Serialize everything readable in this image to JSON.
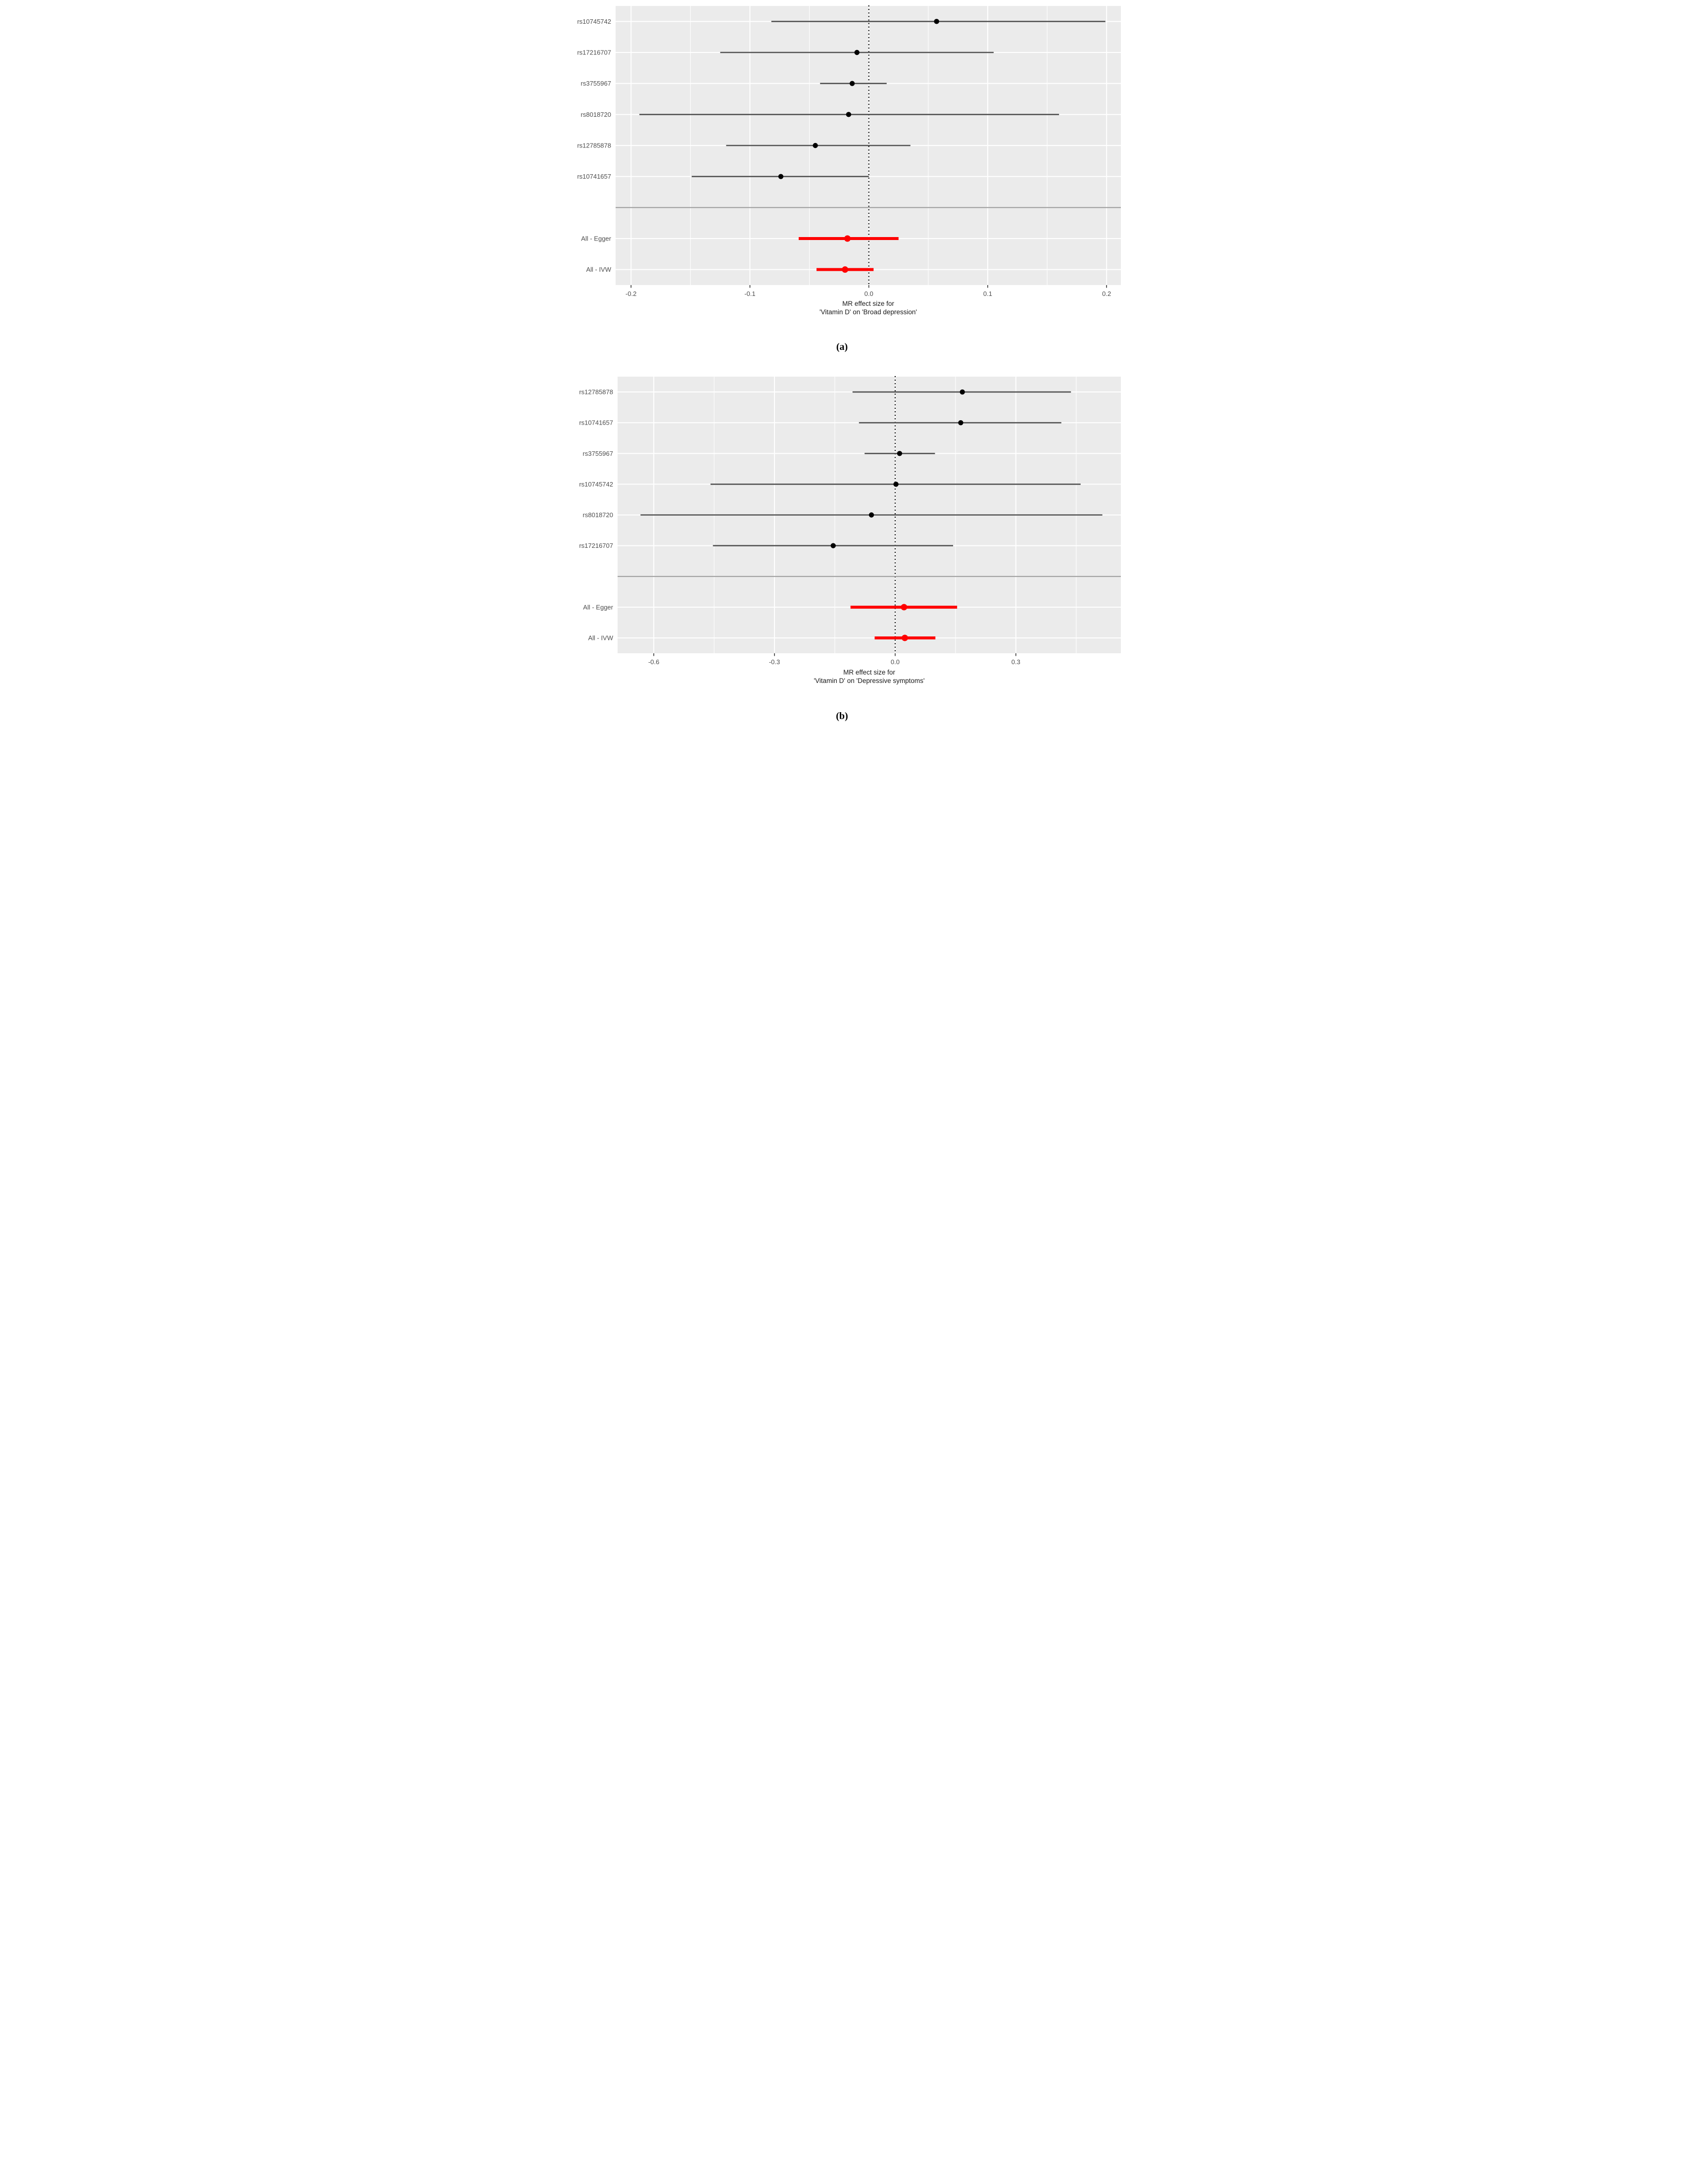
{
  "figure": {
    "description": "Two-panel forest plot figure of Mendelian randomization single-SNP and summary effects"
  },
  "colors": {
    "page_background": "#ffffff",
    "panel_background": "#ebebeb",
    "grid_line": "#ffffff",
    "snp_line": "#545454",
    "snp_point": "#000000",
    "summary_color": "#ff0000",
    "separator_line": "#9a9a9a",
    "zero_line": "#000000",
    "axis_text": "#4d4d4d",
    "axis_title": "#1a1a1a",
    "tick_mark": "#333333"
  },
  "chart_data": [
    {
      "id": "a",
      "type": "scatter",
      "variant": "forest-plot",
      "panel_label": "(a)",
      "xlabel": "MR effect size for 'Vitamin D' on 'Broad depression'",
      "xlabel_lines": [
        "MR effect size for",
        "'Vitamin D' on 'Broad depression'"
      ],
      "ylabel": "",
      "grid": true,
      "legend": false,
      "xlim": [
        -0.213,
        0.212
      ],
      "xticks": [
        -0.2,
        -0.1,
        0.0,
        0.1,
        0.2
      ],
      "xtick_labels": [
        "-0.2",
        "-0.1",
        "0.0",
        "0.1",
        "0.2"
      ],
      "xminor": [
        -0.15,
        -0.05,
        0.05,
        0.15
      ],
      "zero_line": 0.0,
      "rows": [
        {
          "label": "rs10745742",
          "group": "snp",
          "estimate": 0.057,
          "ci_low": -0.082,
          "ci_high": 0.199
        },
        {
          "label": "rs17216707",
          "group": "snp",
          "estimate": -0.01,
          "ci_low": -0.125,
          "ci_high": 0.105
        },
        {
          "label": "rs3755967",
          "group": "snp",
          "estimate": -0.014,
          "ci_low": -0.041,
          "ci_high": 0.015
        },
        {
          "label": "rs8018720",
          "group": "snp",
          "estimate": -0.017,
          "ci_low": -0.193,
          "ci_high": 0.16
        },
        {
          "label": "rs12785878",
          "group": "snp",
          "estimate": -0.045,
          "ci_low": -0.12,
          "ci_high": 0.035
        },
        {
          "label": "rs10741657",
          "group": "snp",
          "estimate": -0.074,
          "ci_low": -0.149,
          "ci_high": 0.0
        },
        {
          "label": "",
          "group": "separator"
        },
        {
          "label": "All - Egger",
          "group": "all",
          "estimate": -0.018,
          "ci_low": -0.059,
          "ci_high": 0.025
        },
        {
          "label": "All - IVW",
          "group": "all",
          "estimate": -0.02,
          "ci_low": -0.044,
          "ci_high": 0.004
        }
      ]
    },
    {
      "id": "b",
      "type": "scatter",
      "variant": "forest-plot",
      "panel_label": "(b)",
      "xlabel": "MR effect size for 'Vitamin D' on 'Depressive symptoms'",
      "xlabel_lines": [
        "MR effect size for",
        "'Vitamin D' on 'Depressive symptoms'"
      ],
      "ylabel": "",
      "grid": true,
      "legend": false,
      "xlim": [
        -0.69,
        0.561
      ],
      "xticks": [
        -0.6,
        -0.3,
        0.0,
        0.3
      ],
      "xtick_labels": [
        "-0.6",
        "-0.3",
        "0.0",
        "0.3"
      ],
      "xminor": [
        -0.45,
        -0.15,
        0.15,
        0.45
      ],
      "zero_line": 0.0,
      "rows": [
        {
          "label": "rs12785878",
          "group": "snp",
          "estimate": 0.167,
          "ci_low": -0.106,
          "ci_high": 0.437
        },
        {
          "label": "rs10741657",
          "group": "snp",
          "estimate": 0.163,
          "ci_low": -0.09,
          "ci_high": 0.413
        },
        {
          "label": "rs3755967",
          "group": "snp",
          "estimate": 0.011,
          "ci_low": -0.076,
          "ci_high": 0.099
        },
        {
          "label": "rs10745742",
          "group": "snp",
          "estimate": 0.002,
          "ci_low": -0.459,
          "ci_high": 0.461
        },
        {
          "label": "rs8018720",
          "group": "snp",
          "estimate": -0.059,
          "ci_low": -0.633,
          "ci_high": 0.515
        },
        {
          "label": "rs17216707",
          "group": "snp",
          "estimate": -0.154,
          "ci_low": -0.453,
          "ci_high": 0.144
        },
        {
          "label": "",
          "group": "separator"
        },
        {
          "label": "All - Egger",
          "group": "all",
          "estimate": 0.022,
          "ci_low": -0.111,
          "ci_high": 0.154
        },
        {
          "label": "All - IVW",
          "group": "all",
          "estimate": 0.024,
          "ci_low": -0.051,
          "ci_high": 0.1
        }
      ]
    }
  ]
}
